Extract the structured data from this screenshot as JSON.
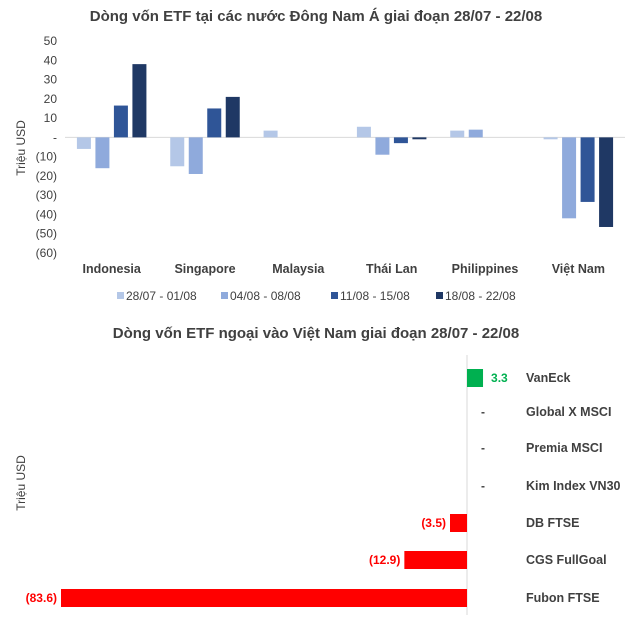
{
  "chart_data": [
    {
      "type": "bar",
      "title": "Dòng vốn ETF tại các nước Đông Nam Á giai đoạn 28/07 - 22/08",
      "ylabel": "Triệu USD",
      "xlabel": "",
      "ylim": [
        -60,
        50
      ],
      "yticks": [
        50,
        40,
        30,
        20,
        10,
        0,
        -10,
        -20,
        -30,
        -40,
        -50,
        -60
      ],
      "ytick_labels": [
        "50",
        "40",
        "30",
        "20",
        "10",
        "-",
        "(10)",
        "(20)",
        "(30)",
        "(40)",
        "(50)",
        "(60)"
      ],
      "grid": false,
      "legend_position": "bottom",
      "categories": [
        "Indonesia",
        "Singapore",
        "Malaysia",
        "Thái Lan",
        "Philippines",
        "Việt Nam"
      ],
      "series": [
        {
          "name": "28/07 - 01/08",
          "color": "#b4c7e7",
          "values": [
            -6,
            -15,
            3.5,
            5.5,
            3.5,
            -1
          ]
        },
        {
          "name": "04/08 - 08/08",
          "color": "#8faadc",
          "values": [
            -16,
            -19,
            0,
            -9,
            4,
            -42
          ]
        },
        {
          "name": "11/08 - 15/08",
          "color": "#2f5597",
          "values": [
            16.5,
            15,
            0,
            -3,
            0,
            -33.5
          ]
        },
        {
          "name": "18/08 - 22/08",
          "color": "#1f3864",
          "values": [
            38,
            21,
            0,
            -1,
            0,
            -46.5
          ]
        }
      ]
    },
    {
      "type": "bar",
      "orientation": "horizontal",
      "title": "Dòng vốn ETF ngoại vào Việt Nam giai đoạn 28/07 - 22/08",
      "ylabel": "Triệu USD",
      "xlabel": "",
      "categories": [
        "VanEck",
        "Global X MSCI",
        "Premia MSCI",
        "Kim Index VN30",
        "DB FTSE",
        "CGS FullGoal",
        "Fubon FTSE"
      ],
      "values": [
        3.3,
        0,
        0,
        0,
        -3.5,
        -12.9,
        -83.6
      ],
      "data_labels": [
        "3.3",
        "-",
        "-",
        "-",
        "(3.5)",
        "(12.9)",
        "(83.6)"
      ],
      "positive_color": "#00b050",
      "negative_color": "#ff0000"
    }
  ]
}
